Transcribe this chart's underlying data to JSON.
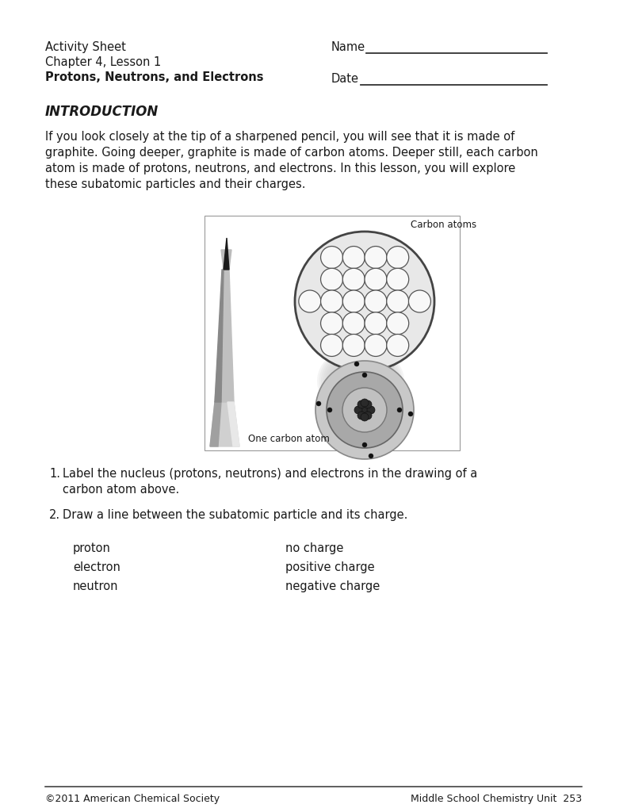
{
  "bg_color": "#ffffff",
  "header_left": [
    "Activity Sheet",
    "Chapter 4, Lesson 1",
    "Protons, Neutrons, and Electrons"
  ],
  "header_right_labels": [
    "Name",
    "Date"
  ],
  "section_title": "INTRODUCTION",
  "intro_text": "If you look closely at the tip of a sharpened pencil, you will see that it is made of\ngraphite. Going deeper, graphite is made of carbon atoms. Deeper still, each carbon\natom is made of protons, neutrons, and electrons. In this lesson, you will explore\nthese subatomic particles and their charges.",
  "question1_num": "1.",
  "question1_text": "Label the nucleus (protons, neutrons) and electrons in the drawing of a\ncarbon atom above.",
  "question2_num": "2.",
  "question2_text": "Draw a line between the subatomic particle and its charge.",
  "particles": [
    "proton",
    "electron",
    "neutron"
  ],
  "charges": [
    "no charge",
    "positive charge",
    "negative charge"
  ],
  "carbon_atoms_label": "Carbon atoms",
  "one_carbon_label": "One carbon atom",
  "footer_left": "©2011 American Chemical Society",
  "footer_right": "Middle School Chemistry Unit  253",
  "text_color": "#1a1a1a",
  "line_color": "#333333"
}
